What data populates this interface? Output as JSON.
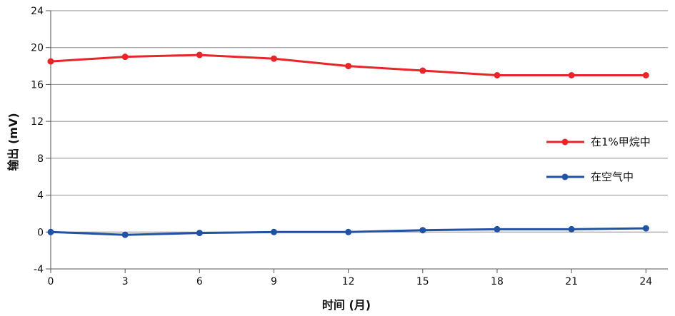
{
  "chart_data": {
    "type": "line",
    "xlabel": "时间 (月)",
    "ylabel": "输出 (mV)",
    "x": [
      0,
      3,
      6,
      9,
      12,
      15,
      18,
      21,
      24
    ],
    "xticks": [
      "0",
      "3",
      "6",
      "9",
      "12",
      "15",
      "18",
      "21",
      "24"
    ],
    "yticks": [
      "-4",
      "0",
      "4",
      "8",
      "12",
      "16",
      "20",
      "24"
    ],
    "xlim": [
      0,
      24
    ],
    "ylim": [
      -4,
      24
    ],
    "grid": "horizontal",
    "legend_position": "right-middle",
    "series": [
      {
        "name": "在1%甲烷中",
        "color": "#e8262a",
        "values": [
          18.5,
          19.0,
          19.2,
          18.8,
          18.0,
          17.5,
          17.0,
          17.0,
          17.0
        ]
      },
      {
        "name": "在空气中",
        "color": "#2152a3",
        "values": [
          0.0,
          -0.3,
          -0.1,
          0.0,
          0.0,
          0.2,
          0.3,
          0.3,
          0.4
        ]
      }
    ]
  }
}
